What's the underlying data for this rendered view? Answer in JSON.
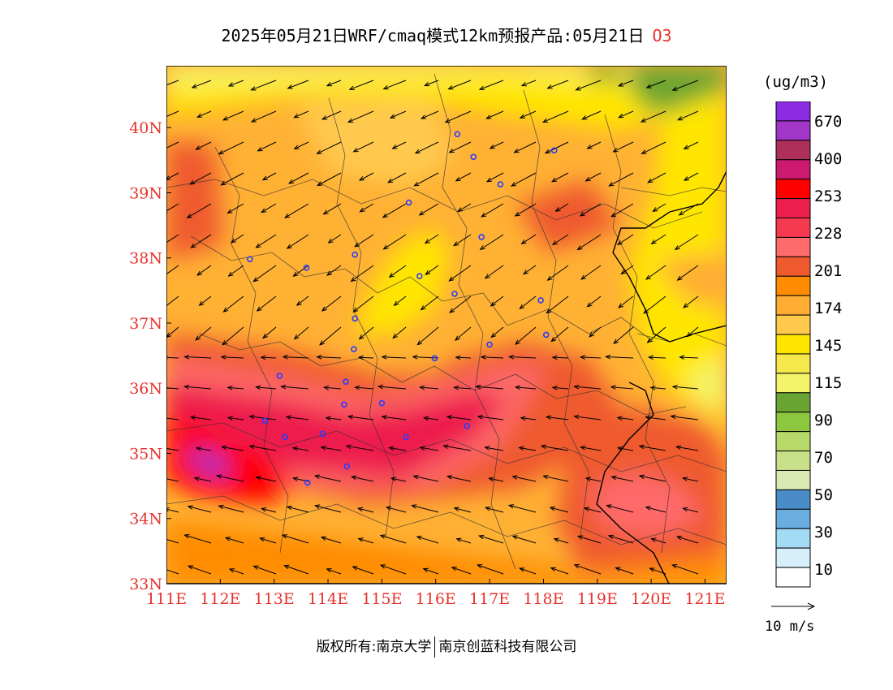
{
  "title": {
    "text": "2025年05月21日WRF/cmaq模式12km预报产品:05月21日",
    "species": "O3"
  },
  "unit": "(ug/m3)",
  "axes": {
    "lon_labels": [
      "111E",
      "112E",
      "113E",
      "114E",
      "115E",
      "116E",
      "117E",
      "118E",
      "119E",
      "120E",
      "121E"
    ],
    "lat_labels": [
      "33N",
      "34N",
      "35N",
      "36N",
      "37N",
      "38N",
      "39N",
      "40N"
    ],
    "lon_range": [
      111,
      121.4
    ],
    "lat_range": [
      33,
      40.95
    ]
  },
  "legend": {
    "labels": [
      "670",
      "400",
      "253",
      "228",
      "201",
      "174",
      "145",
      "115",
      "90",
      "70",
      "50",
      "30",
      "10"
    ],
    "colors_top_to_bottom": [
      "#8b2be2",
      "#a236c8",
      "#ad2f5a",
      "#cc1a70",
      "#ff0000",
      "#ee1f4d",
      "#f5394f",
      "#ff6b6b",
      "#ef5a2f",
      "#ff8c00",
      "#ffad33",
      "#ffc94d",
      "#ffe600",
      "#f5e84a",
      "#f4f46a",
      "#6aa433",
      "#8dc63f",
      "#b7d96a",
      "#c9e08a",
      "#dbeab3",
      "#4a8cc8",
      "#6aaee0",
      "#a3dbf5",
      "#d7effa",
      "#ffffff"
    ]
  },
  "wind_reference": {
    "label": "10 m/s"
  },
  "cities": [
    {
      "lon": 116.4,
      "lat": 39.9
    },
    {
      "lon": 116.7,
      "lat": 39.55
    },
    {
      "lon": 117.2,
      "lat": 39.13
    },
    {
      "lon": 118.2,
      "lat": 39.65
    },
    {
      "lon": 115.5,
      "lat": 38.85
    },
    {
      "lon": 116.85,
      "lat": 38.32
    },
    {
      "lon": 114.5,
      "lat": 38.05
    },
    {
      "lon": 112.55,
      "lat": 37.98
    },
    {
      "lon": 113.6,
      "lat": 37.85
    },
    {
      "lon": 115.7,
      "lat": 37.72
    },
    {
      "lon": 116.35,
      "lat": 37.45
    },
    {
      "lon": 117.95,
      "lat": 37.35
    },
    {
      "lon": 114.5,
      "lat": 37.07
    },
    {
      "lon": 118.05,
      "lat": 36.82
    },
    {
      "lon": 114.48,
      "lat": 36.6
    },
    {
      "lon": 117.0,
      "lat": 36.67
    },
    {
      "lon": 115.98,
      "lat": 36.46
    },
    {
      "lon": 113.1,
      "lat": 36.19
    },
    {
      "lon": 114.33,
      "lat": 36.1
    },
    {
      "lon": 114.3,
      "lat": 35.75
    },
    {
      "lon": 115.0,
      "lat": 35.77
    },
    {
      "lon": 112.83,
      "lat": 35.5
    },
    {
      "lon": 113.2,
      "lat": 35.25
    },
    {
      "lon": 113.9,
      "lat": 35.3
    },
    {
      "lon": 115.45,
      "lat": 35.25
    },
    {
      "lon": 116.58,
      "lat": 35.42
    },
    {
      "lon": 114.35,
      "lat": 34.8
    },
    {
      "lon": 113.62,
      "lat": 34.55
    }
  ],
  "copyright": {
    "left": "版权所有:南京大学",
    "right": "南京创蓝科技有限公司"
  }
}
